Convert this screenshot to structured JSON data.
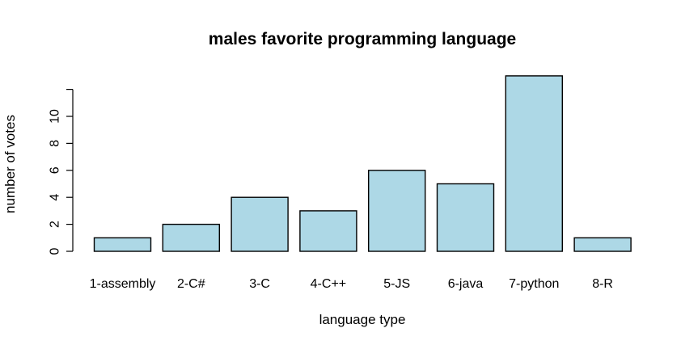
{
  "chart_data": {
    "type": "bar",
    "title": "males favorite programming language",
    "xlabel": "language type",
    "ylabel": "number of votes",
    "categories": [
      "1-assembly",
      "2-C#",
      "3-C",
      "4-C++",
      "5-JS",
      "6-java",
      "7-python",
      "8-R"
    ],
    "values": [
      1,
      2,
      4,
      3,
      6,
      5,
      13,
      1
    ],
    "yticks": [
      0,
      2,
      4,
      6,
      8,
      10
    ],
    "ylim": [
      0,
      12
    ],
    "grid": false,
    "legend": "none",
    "bar_color": "#add8e6",
    "border_color": "#000000"
  }
}
